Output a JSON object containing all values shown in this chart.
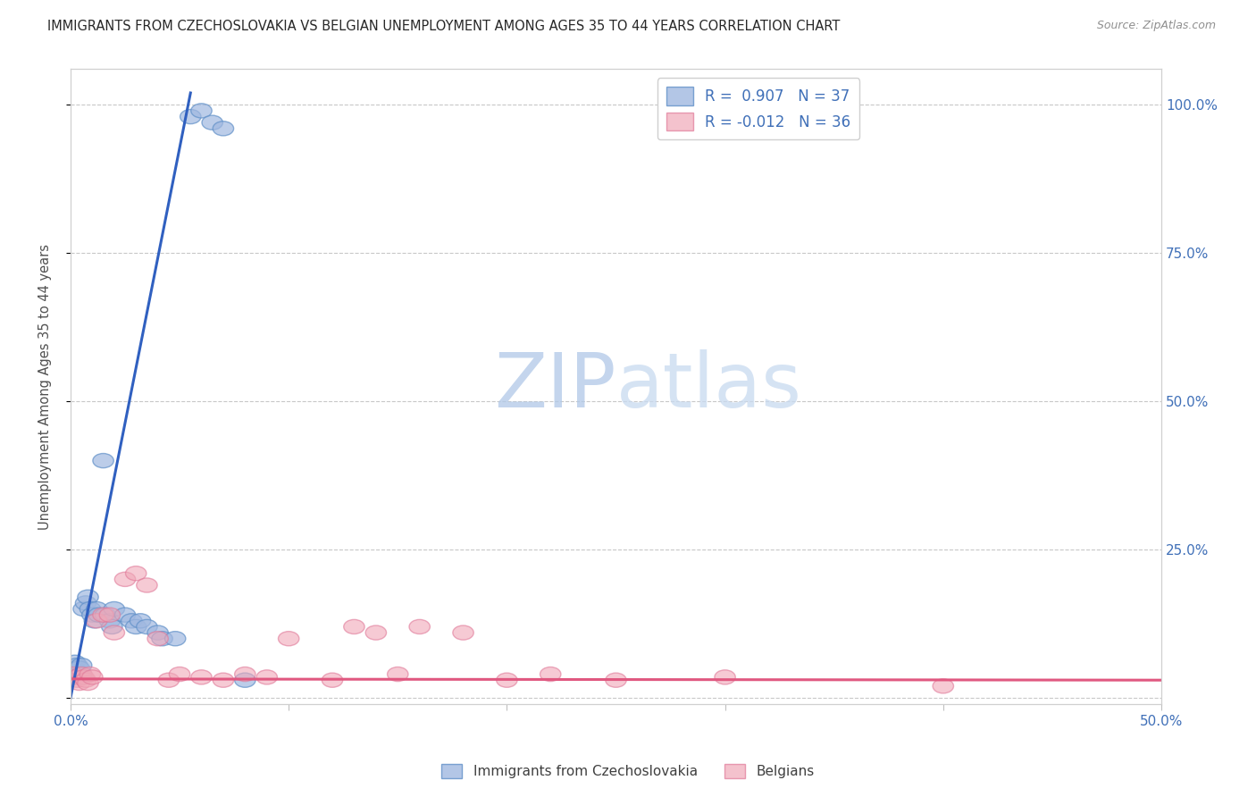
{
  "title": "IMMIGRANTS FROM CZECHOSLOVAKIA VS BELGIAN UNEMPLOYMENT AMONG AGES 35 TO 44 YEARS CORRELATION CHART",
  "source": "Source: ZipAtlas.com",
  "ylabel": "Unemployment Among Ages 35 to 44 years",
  "xlim": [
    0.0,
    0.5
  ],
  "ylim": [
    -0.01,
    1.06
  ],
  "y_ticks": [
    0.0,
    0.25,
    0.5,
    0.75,
    1.0
  ],
  "y_tick_labels_right": [
    "",
    "25.0%",
    "50.0%",
    "75.0%",
    "100.0%"
  ],
  "x_ticks": [
    0.0,
    0.1,
    0.2,
    0.3,
    0.4,
    0.5
  ],
  "x_tick_labels": [
    "0.0%",
    "",
    "",
    "",
    "",
    "50.0%"
  ],
  "blue_color": "#a0b8e0",
  "blue_edge_color": "#6090c8",
  "pink_color": "#f0a8b8",
  "pink_edge_color": "#e07898",
  "blue_line_color": "#3060c0",
  "pink_line_color": "#e05880",
  "legend_blue_label": "R =  0.907   N = 37",
  "legend_pink_label": "R = -0.012   N = 36",
  "legend1_label": "Immigrants from Czechoslovakia",
  "legend2_label": "Belgians",
  "watermark_zip": "ZIP",
  "watermark_atlas": "atlas",
  "watermark_color_zip": "#b8cce8",
  "watermark_color_atlas": "#c8daf0",
  "grid_color": "#c8c8c8",
  "tick_label_color": "#4070b8",
  "ylabel_color": "#505050",
  "blue_line_x0": 0.0,
  "blue_line_y0": 0.0,
  "blue_line_x1": 0.055,
  "blue_line_y1": 1.02,
  "pink_line_x0": 0.0,
  "pink_line_y0": 0.032,
  "pink_line_x1": 0.5,
  "pink_line_y1": 0.03,
  "blue_scatter_x": [
    0.001,
    0.001,
    0.002,
    0.002,
    0.003,
    0.003,
    0.003,
    0.004,
    0.004,
    0.005,
    0.005,
    0.006,
    0.007,
    0.008,
    0.009,
    0.01,
    0.011,
    0.012,
    0.013,
    0.015,
    0.016,
    0.018,
    0.019,
    0.02,
    0.025,
    0.028,
    0.03,
    0.032,
    0.035,
    0.04,
    0.042,
    0.048,
    0.055,
    0.06,
    0.065,
    0.07,
    0.08
  ],
  "blue_scatter_y": [
    0.04,
    0.035,
    0.05,
    0.06,
    0.045,
    0.055,
    0.04,
    0.05,
    0.035,
    0.04,
    0.055,
    0.15,
    0.16,
    0.17,
    0.15,
    0.14,
    0.13,
    0.15,
    0.14,
    0.4,
    0.14,
    0.13,
    0.12,
    0.15,
    0.14,
    0.13,
    0.12,
    0.13,
    0.12,
    0.11,
    0.1,
    0.1,
    0.98,
    0.99,
    0.97,
    0.96,
    0.03
  ],
  "pink_scatter_x": [
    0.001,
    0.002,
    0.003,
    0.004,
    0.005,
    0.006,
    0.007,
    0.008,
    0.009,
    0.01,
    0.012,
    0.015,
    0.018,
    0.02,
    0.025,
    0.03,
    0.035,
    0.04,
    0.045,
    0.05,
    0.06,
    0.07,
    0.08,
    0.09,
    0.1,
    0.12,
    0.13,
    0.14,
    0.15,
    0.16,
    0.18,
    0.2,
    0.22,
    0.25,
    0.3,
    0.4
  ],
  "pink_scatter_y": [
    0.04,
    0.035,
    0.03,
    0.025,
    0.04,
    0.035,
    0.03,
    0.025,
    0.04,
    0.035,
    0.13,
    0.14,
    0.14,
    0.11,
    0.2,
    0.21,
    0.19,
    0.1,
    0.03,
    0.04,
    0.035,
    0.03,
    0.04,
    0.035,
    0.1,
    0.03,
    0.12,
    0.11,
    0.04,
    0.12,
    0.11,
    0.03,
    0.04,
    0.03,
    0.035,
    0.02
  ]
}
